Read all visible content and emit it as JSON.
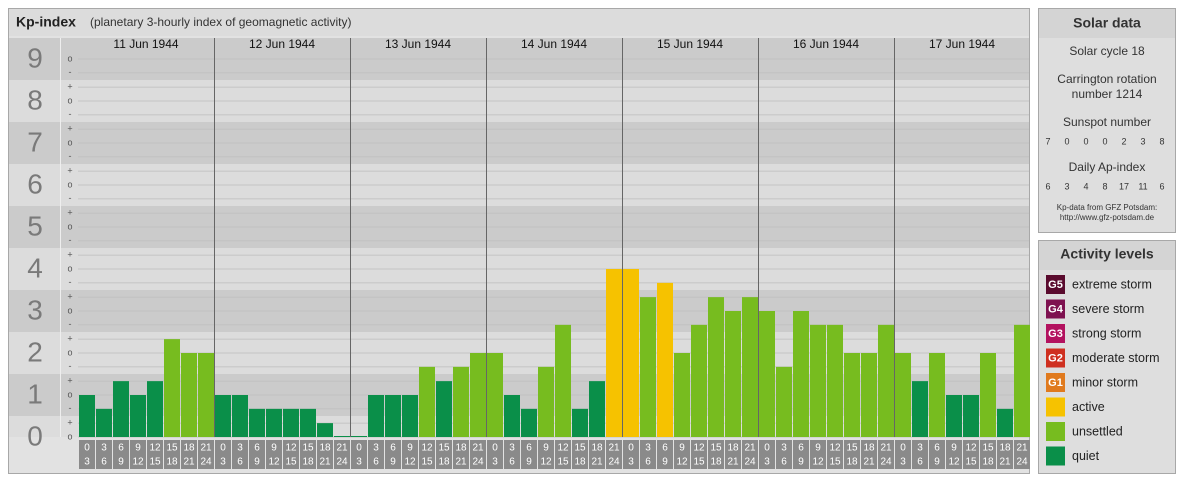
{
  "chart_data": {
    "type": "bar",
    "title": "Kp-index",
    "subtitle": "(planetary 3-hourly index of geomagnetic activity)",
    "ylim": [
      0,
      9.5
    ],
    "yticks": [
      0,
      1,
      2,
      3,
      4,
      5,
      6,
      7,
      8,
      9
    ],
    "minor_yticks": [
      {
        "value": 0,
        "label": "o"
      },
      {
        "value": 0.33,
        "label": "+"
      },
      {
        "value": 0.67,
        "label": "-"
      },
      {
        "value": 1,
        "label": "o"
      },
      {
        "value": 1.33,
        "label": "+"
      },
      {
        "value": 1.67,
        "label": "-"
      },
      {
        "value": 2,
        "label": "o"
      },
      {
        "value": 2.33,
        "label": "+"
      },
      {
        "value": 2.67,
        "label": "-"
      },
      {
        "value": 3,
        "label": "o"
      },
      {
        "value": 3.33,
        "label": "+"
      },
      {
        "value": 3.67,
        "label": "-"
      },
      {
        "value": 4,
        "label": "o"
      },
      {
        "value": 4.33,
        "label": "+"
      },
      {
        "value": 4.67,
        "label": "-"
      },
      {
        "value": 5,
        "label": "o"
      },
      {
        "value": 5.33,
        "label": "+"
      },
      {
        "value": 5.67,
        "label": "-"
      },
      {
        "value": 6,
        "label": "o"
      },
      {
        "value": 6.33,
        "label": "+"
      },
      {
        "value": 6.67,
        "label": "-"
      },
      {
        "value": 7,
        "label": "o"
      },
      {
        "value": 7.33,
        "label": "+"
      },
      {
        "value": 7.67,
        "label": "-"
      },
      {
        "value": 8,
        "label": "o"
      },
      {
        "value": 8.33,
        "label": "+"
      },
      {
        "value": 8.67,
        "label": "-"
      },
      {
        "value": 9,
        "label": "o"
      }
    ],
    "intervals": [
      {
        "from": 0,
        "to": 3
      },
      {
        "from": 3,
        "to": 6
      },
      {
        "from": 6,
        "to": 9
      },
      {
        "from": 9,
        "to": 12
      },
      {
        "from": 12,
        "to": 15
      },
      {
        "from": 15,
        "to": 18
      },
      {
        "from": 18,
        "to": 21
      },
      {
        "from": 21,
        "to": 24
      }
    ],
    "days": [
      {
        "date": "11 Jun 1944",
        "values": [
          1,
          0.67,
          1.33,
          1,
          1.33,
          2.33,
          2,
          2
        ],
        "colors": [
          "#0a8f49",
          "#0a8f49",
          "#0a8f49",
          "#0a8f49",
          "#0a8f49",
          "#77bc1f",
          "#77bc1f",
          "#77bc1f"
        ]
      },
      {
        "date": "12 Jun 1944",
        "values": [
          1,
          1,
          0.67,
          0.67,
          0.67,
          0.67,
          0.33,
          0
        ],
        "colors": [
          "#0a8f49",
          "#0a8f49",
          "#0a8f49",
          "#0a8f49",
          "#0a8f49",
          "#0a8f49",
          "#0a8f49",
          "#0a8f49"
        ]
      },
      {
        "date": "13 Jun 1944",
        "values": [
          0,
          1,
          1,
          1,
          1.67,
          1.33,
          1.67,
          2
        ],
        "colors": [
          "#0a8f49",
          "#0a8f49",
          "#0a8f49",
          "#0a8f49",
          "#77bc1f",
          "#0a8f49",
          "#77bc1f",
          "#77bc1f"
        ]
      },
      {
        "date": "14 Jun 1944",
        "values": [
          2,
          1,
          0.67,
          1.67,
          2.67,
          0.67,
          1.33,
          4
        ],
        "colors": [
          "#77bc1f",
          "#0a8f49",
          "#0a8f49",
          "#77bc1f",
          "#77bc1f",
          "#0a8f49",
          "#0a8f49",
          "#f6c200"
        ]
      },
      {
        "date": "15 Jun 1944",
        "values": [
          4,
          3.33,
          3.67,
          2,
          2.67,
          3.33,
          3,
          3.33
        ],
        "colors": [
          "#f6c200",
          "#77bc1f",
          "#f6c200",
          "#77bc1f",
          "#77bc1f",
          "#77bc1f",
          "#77bc1f",
          "#77bc1f"
        ]
      },
      {
        "date": "16 Jun 1944",
        "values": [
          3,
          1.67,
          3,
          2.67,
          2.67,
          2,
          2,
          2.67
        ],
        "colors": [
          "#77bc1f",
          "#77bc1f",
          "#77bc1f",
          "#77bc1f",
          "#77bc1f",
          "#77bc1f",
          "#77bc1f",
          "#77bc1f"
        ]
      },
      {
        "date": "17 Jun 1944",
        "values": [
          2,
          1.33,
          2,
          1,
          1,
          2,
          0.67,
          2.67
        ],
        "colors": [
          "#77bc1f",
          "#0a8f49",
          "#77bc1f",
          "#0a8f49",
          "#0a8f49",
          "#77bc1f",
          "#0a8f49",
          "#77bc1f"
        ]
      }
    ]
  },
  "solar_data": {
    "title": "Solar data",
    "cycle": "Solar cycle 18",
    "rotation_lines": [
      "Carrington rotation",
      "number 1214"
    ],
    "sunspot_label": "Sunspot number",
    "sunspot_numbers": [
      7,
      0,
      0,
      0,
      2,
      3,
      8
    ],
    "ap_label": "Daily Ap-index",
    "ap_values": [
      6,
      3,
      4,
      8,
      17,
      11,
      6
    ],
    "source_lines": [
      "Kp-data from GFZ Potsdam:",
      "http://www.gfz-potsdam.de"
    ]
  },
  "activity_levels": {
    "title": "Activity levels",
    "levels": [
      {
        "code": "G5",
        "name": "extreme storm",
        "color": "#5a0b2e"
      },
      {
        "code": "G4",
        "name": "severe storm",
        "color": "#7e1150"
      },
      {
        "code": "G3",
        "name": "strong storm",
        "color": "#b3125f"
      },
      {
        "code": "G2",
        "name": "moderate storm",
        "color": "#cf3020"
      },
      {
        "code": "G1",
        "name": "minor storm",
        "color": "#e07a1e"
      },
      {
        "name": "active",
        "color": "#f6c200"
      },
      {
        "name": "unsettled",
        "color": "#77bc1f"
      },
      {
        "name": "quiet",
        "color": "#0a8f49"
      }
    ]
  }
}
